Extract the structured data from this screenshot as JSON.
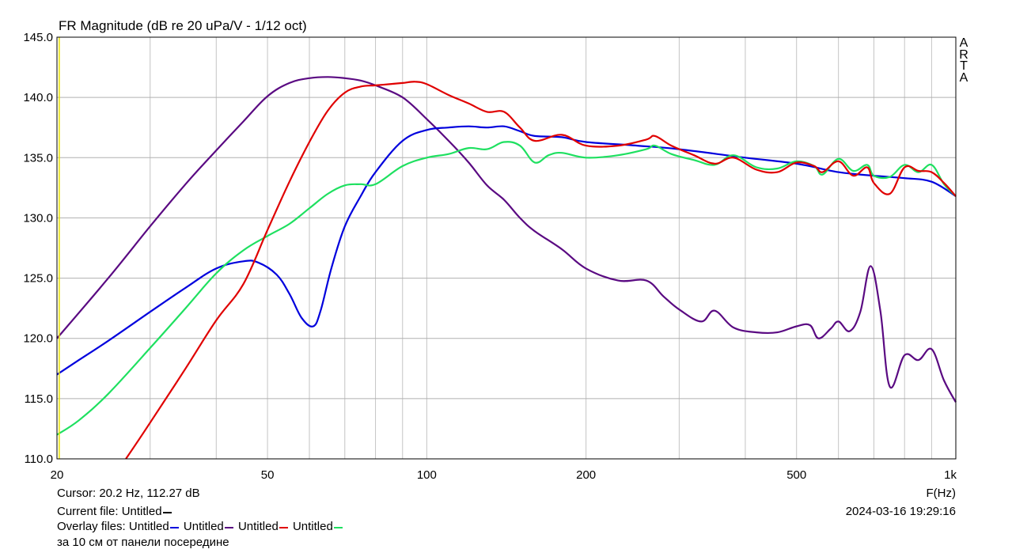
{
  "chart_data": {
    "type": "line",
    "title": "FR Magnitude (dB re 20 uPa/V - 1/12 oct)",
    "xlabel": "F(Hz)",
    "x_scale": "log",
    "xlim": [
      20,
      1000
    ],
    "ylim": [
      110,
      145
    ],
    "grid": true,
    "x_ticks": [
      20,
      50,
      100,
      200,
      500,
      1000
    ],
    "x_tick_labels": [
      "20",
      "50",
      "100",
      "200",
      "500",
      "1k"
    ],
    "x_minor_ticks": [
      30,
      40,
      60,
      70,
      80,
      90,
      300,
      400,
      600,
      700,
      800,
      900
    ],
    "y_ticks": [
      110,
      115,
      120,
      125,
      130,
      135,
      140,
      145
    ],
    "y_tick_labels": [
      "110.0",
      "115.0",
      "120.0",
      "125.0",
      "130.0",
      "135.0",
      "140.0",
      "145.0"
    ],
    "watermark": [
      "A",
      "R",
      "T",
      "A"
    ],
    "cursor_x": 20.2,
    "series": [
      {
        "name": "Untitled",
        "color": "#0000dd",
        "x": [
          20,
          22,
          25,
          30,
          35,
          40,
          45,
          48,
          52,
          55,
          58,
          61,
          63,
          66,
          70,
          75,
          80,
          90,
          100,
          110,
          120,
          130,
          140,
          150,
          160,
          180,
          200,
          250,
          300,
          400,
          500,
          600,
          700,
          800,
          900,
          1000
        ],
        "y": [
          117,
          118.2,
          119.8,
          122.2,
          124.2,
          125.8,
          126.4,
          126.3,
          125.3,
          123.7,
          121.7,
          121,
          122.3,
          125.8,
          129.3,
          131.8,
          133.8,
          136.4,
          137.3,
          137.5,
          137.6,
          137.5,
          137.6,
          137.2,
          136.8,
          136.7,
          136.3,
          136,
          135.7,
          135,
          134.5,
          133.8,
          133.5,
          133.3,
          133,
          131.8
        ]
      },
      {
        "name": "Untitled",
        "color": "#5a0a82",
        "x": [
          20,
          25,
          30,
          35,
          40,
          45,
          50,
          55,
          60,
          65,
          70,
          75,
          80,
          90,
          100,
          110,
          120,
          130,
          140,
          150,
          160,
          180,
          200,
          230,
          260,
          280,
          300,
          330,
          350,
          380,
          420,
          460,
          500,
          530,
          550,
          580,
          600,
          630,
          660,
          690,
          720,
          750,
          800,
          850,
          900,
          950,
          1000
        ],
        "y": [
          120,
          125,
          129.3,
          132.8,
          135.6,
          138,
          140.1,
          141.2,
          141.6,
          141.7,
          141.6,
          141.4,
          141,
          140,
          138.2,
          136.4,
          134.6,
          132.7,
          131.5,
          130,
          128.9,
          127.4,
          125.8,
          124.8,
          124.8,
          123.5,
          122.4,
          121.4,
          122.3,
          120.9,
          120.5,
          120.5,
          121,
          121.1,
          120,
          120.8,
          121.4,
          120.6,
          122.2,
          126,
          122.3,
          116,
          118.6,
          118.2,
          119.1,
          116.5,
          114.7
        ]
      },
      {
        "name": "Untitled",
        "color": "#e00000",
        "x": [
          27,
          30,
          35,
          40,
          45,
          50,
          55,
          60,
          65,
          70,
          75,
          80,
          85,
          90,
          95,
          100,
          110,
          120,
          130,
          140,
          150,
          160,
          180,
          200,
          230,
          260,
          270,
          290,
          320,
          350,
          380,
          420,
          460,
          500,
          540,
          560,
          600,
          640,
          680,
          700,
          750,
          800,
          850,
          900,
          950,
          1000
        ],
        "y": [
          110,
          113,
          117.5,
          121.5,
          124.5,
          129,
          133,
          136.3,
          138.9,
          140.4,
          140.9,
          141,
          141.1,
          141.2,
          141.3,
          141.1,
          140.2,
          139.5,
          138.8,
          138.8,
          137.5,
          136.4,
          136.9,
          136,
          136,
          136.5,
          136.8,
          136,
          135.2,
          134.5,
          135,
          134,
          133.8,
          134.6,
          134.3,
          133.8,
          134.7,
          133.5,
          134.2,
          132.9,
          132,
          134.2,
          133.9,
          133.8,
          132.9,
          131.8
        ]
      },
      {
        "name": "Untitled",
        "color": "#1ee060",
        "x": [
          20,
          22,
          25,
          30,
          35,
          40,
          45,
          50,
          55,
          60,
          65,
          70,
          75,
          80,
          90,
          100,
          110,
          120,
          130,
          140,
          150,
          160,
          170,
          180,
          200,
          230,
          260,
          270,
          290,
          320,
          350,
          380,
          420,
          460,
          500,
          540,
          560,
          600,
          640,
          680,
          700,
          750,
          800,
          850,
          900,
          950,
          1000
        ],
        "y": [
          112,
          113.2,
          115.4,
          119.2,
          122.5,
          125.4,
          127.3,
          128.5,
          129.5,
          130.8,
          132,
          132.7,
          132.8,
          132.8,
          134.3,
          135,
          135.3,
          135.8,
          135.7,
          136.3,
          136,
          134.6,
          135.2,
          135.4,
          135,
          135.2,
          135.7,
          136,
          135.3,
          134.8,
          134.4,
          135.2,
          134.2,
          134.1,
          134.7,
          134.3,
          133.6,
          134.9,
          133.9,
          134.4,
          133.5,
          133.4,
          134.4,
          133.8,
          134.4,
          132.8,
          131.8
        ]
      }
    ]
  },
  "info": {
    "cursor_text": "Cursor: 20.2 Hz, 112.27 dB",
    "current_file_label": "Current file: Untitled",
    "current_file_color": "#000000",
    "overlay_label": "Overlay files:",
    "overlay_items": [
      {
        "name": "Untitled",
        "color": "#0000dd"
      },
      {
        "name": "Untitled",
        "color": "#5a0a82"
      },
      {
        "name": "Untitled",
        "color": "#e00000"
      },
      {
        "name": "Untitled",
        "color": "#1ee060"
      }
    ],
    "note": "за 10 см от панели посередине",
    "timestamp": "2024-03-16   19:29:16",
    "freq_axis_label": "F(Hz)"
  }
}
